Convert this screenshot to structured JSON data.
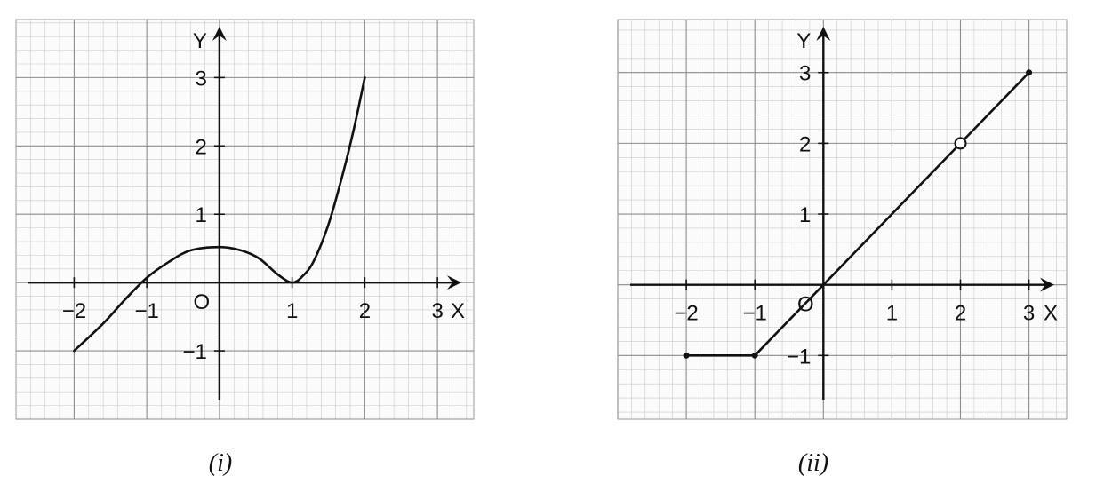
{
  "chart_data": [
    {
      "type": "line",
      "caption": "(i)",
      "xlabel": "X",
      "ylabel": "Y",
      "origin_label": "O",
      "xlim": [
        -2.8,
        3.5
      ],
      "ylim": [
        -2.0,
        3.85
      ],
      "x_ticks": [
        -2,
        -1,
        1,
        2,
        3
      ],
      "x_tick_labels": [
        "−2",
        "−1",
        "1",
        "2",
        "3"
      ],
      "y_ticks": [
        -1,
        1,
        2,
        3
      ],
      "y_tick_labels": [
        "−1",
        "1",
        "2",
        "3"
      ],
      "grid": true,
      "series": [
        {
          "points": [
            [
              -2,
              -1
            ],
            [
              -1.6,
              -0.6
            ],
            [
              -1.3,
              -0.25
            ],
            [
              -1,
              0.07
            ],
            [
              -0.7,
              0.3
            ],
            [
              -0.4,
              0.47
            ],
            [
              0,
              0.52
            ],
            [
              0.3,
              0.47
            ],
            [
              0.55,
              0.35
            ],
            [
              0.8,
              0.12
            ],
            [
              1,
              0
            ],
            [
              1.15,
              0.1
            ],
            [
              1.3,
              0.32
            ],
            [
              1.5,
              0.85
            ],
            [
              1.7,
              1.6
            ],
            [
              1.85,
              2.25
            ],
            [
              2,
              3
            ]
          ]
        }
      ],
      "open_points": [],
      "closed_points": []
    },
    {
      "type": "line",
      "caption": "(ii)",
      "xlabel": "X",
      "ylabel": "Y",
      "origin_label": "O",
      "xlim": [
        -3.0,
        3.55
      ],
      "ylim": [
        -1.9,
        3.75
      ],
      "x_ticks": [
        -2,
        -1,
        1,
        2,
        3
      ],
      "x_tick_labels": [
        "−2",
        "−1",
        "1",
        "2",
        "3"
      ],
      "y_ticks": [
        -1,
        1,
        2,
        3
      ],
      "y_tick_labels": [
        "−1",
        "1",
        "2",
        "3"
      ],
      "grid": true,
      "series": [
        {
          "points": [
            [
              -2,
              -1
            ],
            [
              -1,
              -1
            ]
          ]
        },
        {
          "points": [
            [
              -1,
              -1
            ],
            [
              0,
              0
            ],
            [
              2,
              2
            ]
          ]
        },
        {
          "points": [
            [
              2,
              2
            ],
            [
              3,
              3
            ]
          ]
        }
      ],
      "open_points": [
        [
          2,
          2
        ]
      ],
      "closed_points": [
        [
          -2,
          -1
        ],
        [
          -1,
          -1
        ],
        [
          3,
          3
        ]
      ]
    }
  ]
}
